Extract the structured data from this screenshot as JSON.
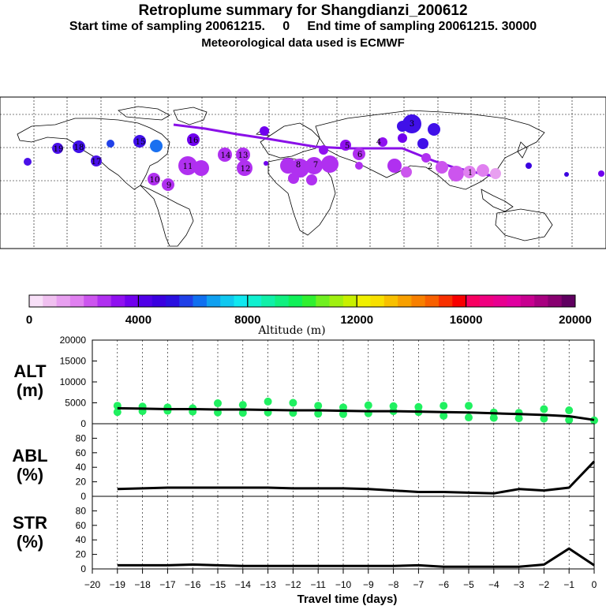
{
  "header": {
    "title": "Retroplume summary for Shangdianzi_200612",
    "subtitle": "Start time of sampling 20061215.     0     End time of sampling 20061215. 30000",
    "met": "Meteorological data used is ECMWF"
  },
  "colorbar": {
    "label": "Altitude (m)",
    "ticks": [
      "0",
      "4000",
      "8000",
      "12000",
      "16000",
      "20000"
    ],
    "colors": [
      "#f8e0f8",
      "#f0c0f0",
      "#e8a0f0",
      "#e080f0",
      "#cc55ee",
      "#b030f0",
      "#9010f0",
      "#7000ee",
      "#5000e8",
      "#3a00e0",
      "#2a10e0",
      "#2040e8",
      "#1070f0",
      "#10a0f0",
      "#10c8f0",
      "#10e8f0",
      "#10f0d0",
      "#10f0a8",
      "#10f080",
      "#10f058",
      "#30f030",
      "#70f020",
      "#a0f010",
      "#c8f000",
      "#f0f000",
      "#f8e000",
      "#f8c000",
      "#f8a000",
      "#f88000",
      "#f86000",
      "#f83000",
      "#f80000",
      "#f80060",
      "#f00080",
      "#e80090",
      "#e000a0",
      "#c80090",
      "#a80080",
      "#880070",
      "#600060"
    ]
  },
  "map": {
    "markers": [
      {
        "label": "19"
      },
      {
        "label": "18"
      },
      {
        "label": "17"
      },
      {
        "label": "16"
      },
      {
        "label": "15"
      },
      {
        "label": "14"
      },
      {
        "label": "13"
      },
      {
        "label": "12"
      },
      {
        "label": "11"
      },
      {
        "label": "10"
      },
      {
        "label": "9"
      },
      {
        "label": "8"
      },
      {
        "label": "7"
      },
      {
        "label": "6"
      },
      {
        "label": "5"
      },
      {
        "label": "4"
      },
      {
        "label": "3"
      },
      {
        "label": "2"
      },
      {
        "label": "1"
      }
    ]
  },
  "panels": {
    "alt": {
      "label_line1": "ALT",
      "label_line2": "(m)"
    },
    "abl": {
      "label_line1": "ABL",
      "label_line2": "(%)"
    },
    "str": {
      "label_line1": "STR",
      "label_line2": "(%)"
    },
    "xlabel": "Travel time (days)",
    "xticks": [
      "-20",
      "-19",
      "-18",
      "-17",
      "-16",
      "-15",
      "-14",
      "-13",
      "-12",
      "-11",
      "-10",
      "-9",
      "-8",
      "-7",
      "-6",
      "-5",
      "-4",
      "-3",
      "-2",
      "-1",
      "0"
    ]
  },
  "chart_data": [
    {
      "type": "line",
      "name": "ALT",
      "ylabel": "ALT (m)",
      "ylim": [
        0,
        20000
      ],
      "yticks": [
        0,
        5000,
        10000,
        15000,
        20000
      ],
      "x": [
        -19,
        -18,
        -17,
        -16,
        -15,
        -14,
        -13,
        -12,
        -11,
        -10,
        -9,
        -8,
        -7,
        -6,
        -5,
        -4,
        -3,
        -2,
        -1,
        0
      ],
      "values": [
        3700,
        3600,
        3500,
        3500,
        3400,
        3400,
        3300,
        3200,
        3200,
        3100,
        3000,
        3000,
        2900,
        2800,
        2700,
        2500,
        2300,
        2100,
        1800,
        900
      ],
      "cluster_points": [
        {
          "x": -19,
          "y": [
            4300,
            2800
          ]
        },
        {
          "x": -18,
          "y": [
            4100,
            3000
          ]
        },
        {
          "x": -17,
          "y": [
            3900,
            3100
          ]
        },
        {
          "x": -16,
          "y": [
            3700,
            2900
          ]
        },
        {
          "x": -15,
          "y": [
            4900,
            2700
          ]
        },
        {
          "x": -14,
          "y": [
            4500,
            2600
          ]
        },
        {
          "x": -13,
          "y": [
            5300,
            2700
          ]
        },
        {
          "x": -12,
          "y": [
            5000,
            2600
          ]
        },
        {
          "x": -11,
          "y": [
            4300,
            2400
          ]
        },
        {
          "x": -10,
          "y": [
            3900,
            2300
          ]
        },
        {
          "x": -9,
          "y": [
            4400,
            2500
          ]
        },
        {
          "x": -8,
          "y": [
            4200,
            3000
          ]
        },
        {
          "x": -7,
          "y": [
            4000,
            2800
          ]
        },
        {
          "x": -6,
          "y": [
            4300,
            1900
          ]
        },
        {
          "x": -5,
          "y": [
            4300,
            1500
          ]
        },
        {
          "x": -4,
          "y": [
            2700,
            1400
          ]
        },
        {
          "x": -3,
          "y": [
            2600,
            1300
          ]
        },
        {
          "x": -2,
          "y": [
            3500,
            1200
          ]
        },
        {
          "x": -1,
          "y": [
            3200,
            900
          ]
        },
        {
          "x": 0,
          "y": [
            800
          ]
        }
      ]
    },
    {
      "type": "line",
      "name": "ABL",
      "ylabel": "ABL (%)",
      "ylim": [
        0,
        100
      ],
      "yticks": [
        0,
        20,
        40,
        60,
        80
      ],
      "x": [
        -19,
        -18,
        -17,
        -16,
        -15,
        -14,
        -13,
        -12,
        -11,
        -10,
        -9,
        -8,
        -7,
        -6,
        -5,
        -4,
        -3,
        -2,
        -1,
        0
      ],
      "values": [
        10,
        11,
        12,
        12,
        12,
        12,
        12,
        11,
        11,
        11,
        10,
        8,
        6,
        6,
        5,
        4,
        10,
        8,
        12,
        48
      ]
    },
    {
      "type": "line",
      "name": "STR",
      "ylabel": "STR (%)",
      "ylim": [
        0,
        100
      ],
      "yticks": [
        0,
        20,
        40,
        60,
        80
      ],
      "x": [
        -19,
        -18,
        -17,
        -16,
        -15,
        -14,
        -13,
        -12,
        -11,
        -10,
        -9,
        -8,
        -7,
        -6,
        -5,
        -4,
        -3,
        -2,
        -1,
        0
      ],
      "values": [
        5,
        5,
        5,
        6,
        5,
        4,
        4,
        4,
        4,
        4,
        4,
        4,
        5,
        3,
        3,
        3,
        3,
        6,
        28,
        5
      ]
    }
  ]
}
